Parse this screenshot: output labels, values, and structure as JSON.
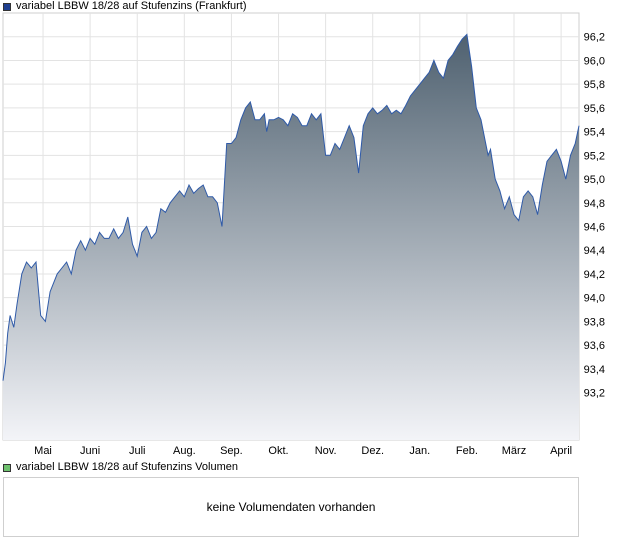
{
  "price_legend": {
    "label": "variabel LBBW 18/28 auf Stufenzins (Frankfurt)",
    "color": "#1f3f8f"
  },
  "volume_legend": {
    "label": "variabel LBBW 18/28 auf Stufenzins Volumen",
    "color": "#6fc26f"
  },
  "volume_panel": {
    "message": "keine Volumendaten vorhanden"
  },
  "colors": {
    "line": "#2f5aa8",
    "fill_top": "#4f6170",
    "fill_bottom": "#f3f4f8",
    "grid": "#e3e3e3"
  },
  "chart_data": {
    "type": "area",
    "title": "variabel LBBW 18/28 auf Stufenzins (Frankfurt)",
    "xlabel": "",
    "ylabel": "",
    "ylim": [
      92.8,
      96.4
    ],
    "yticks": [
      "93,2",
      "93,4",
      "93,6",
      "93,8",
      "94,0",
      "94,2",
      "94,4",
      "94,6",
      "94,8",
      "95,0",
      "95,2",
      "95,4",
      "95,6",
      "95,8",
      "96,0",
      "96,2"
    ],
    "ytick_values": [
      93.2,
      93.4,
      93.6,
      93.8,
      94.0,
      94.2,
      94.4,
      94.6,
      94.8,
      95.0,
      95.2,
      95.4,
      95.6,
      95.8,
      96.0,
      96.2
    ],
    "xticks": [
      "Mai",
      "Juni",
      "Juli",
      "Aug.",
      "Sep.",
      "Okt.",
      "Nov.",
      "Dez.",
      "Jan.",
      "Feb.",
      "März",
      "April"
    ],
    "xtick_positions": [
      0.0,
      1.0,
      2.0,
      3.0,
      4.0,
      5.0,
      6.0,
      7.0,
      8.0,
      9.0,
      10.0,
      11.0
    ],
    "xrange": [
      -0.85,
      11.38
    ],
    "grid": true,
    "series": [
      {
        "name": "variabel LBBW 18/28 auf Stufenzins (Frankfurt)",
        "x": [
          -0.85,
          -0.8,
          -0.75,
          -0.7,
          -0.62,
          -0.55,
          -0.45,
          -0.35,
          -0.25,
          -0.15,
          -0.05,
          0.05,
          0.15,
          0.3,
          0.4,
          0.5,
          0.6,
          0.7,
          0.8,
          0.9,
          1.0,
          1.1,
          1.2,
          1.3,
          1.4,
          1.5,
          1.6,
          1.7,
          1.8,
          1.9,
          2.0,
          2.1,
          2.2,
          2.3,
          2.4,
          2.5,
          2.6,
          2.7,
          2.8,
          2.9,
          3.0,
          3.1,
          3.2,
          3.3,
          3.4,
          3.5,
          3.6,
          3.7,
          3.8,
          3.9,
          4.0,
          4.1,
          4.2,
          4.3,
          4.4,
          4.5,
          4.6,
          4.7,
          4.75,
          4.8,
          4.9,
          5.0,
          5.1,
          5.2,
          5.3,
          5.4,
          5.5,
          5.6,
          5.7,
          5.8,
          5.9,
          6.0,
          6.1,
          6.2,
          6.3,
          6.4,
          6.5,
          6.6,
          6.7,
          6.8,
          6.9,
          7.0,
          7.1,
          7.2,
          7.3,
          7.4,
          7.5,
          7.6,
          7.7,
          7.8,
          7.9,
          8.0,
          8.1,
          8.2,
          8.3,
          8.4,
          8.5,
          8.6,
          8.7,
          8.8,
          8.9,
          9.0,
          9.1,
          9.2,
          9.3,
          9.4,
          9.45,
          9.5,
          9.6,
          9.7,
          9.8,
          9.9,
          10.0,
          10.1,
          10.2,
          10.3,
          10.4,
          10.5,
          10.6,
          10.7,
          10.8,
          10.9,
          11.0,
          11.1,
          11.2,
          11.3,
          11.38
        ],
        "values": [
          93.3,
          93.45,
          93.7,
          93.85,
          93.75,
          93.95,
          94.2,
          94.3,
          94.25,
          94.3,
          93.85,
          93.8,
          94.05,
          94.2,
          94.25,
          94.3,
          94.2,
          94.4,
          94.48,
          94.4,
          94.5,
          94.45,
          94.55,
          94.5,
          94.5,
          94.58,
          94.5,
          94.55,
          94.68,
          94.45,
          94.35,
          94.55,
          94.6,
          94.5,
          94.55,
          94.75,
          94.72,
          94.8,
          94.85,
          94.9,
          94.85,
          94.95,
          94.88,
          94.92,
          94.95,
          94.85,
          94.85,
          94.8,
          94.6,
          95.3,
          95.3,
          95.35,
          95.5,
          95.6,
          95.65,
          95.5,
          95.5,
          95.55,
          95.4,
          95.5,
          95.5,
          95.52,
          95.5,
          95.45,
          95.55,
          95.52,
          95.45,
          95.45,
          95.55,
          95.5,
          95.55,
          95.2,
          95.2,
          95.3,
          95.25,
          95.35,
          95.45,
          95.35,
          95.05,
          95.45,
          95.55,
          95.6,
          95.55,
          95.58,
          95.62,
          95.55,
          95.58,
          95.55,
          95.62,
          95.7,
          95.75,
          95.8,
          95.85,
          95.9,
          96.0,
          95.9,
          95.85,
          96.0,
          96.05,
          96.12,
          96.18,
          96.22,
          95.95,
          95.6,
          95.5,
          95.3,
          95.2,
          95.25,
          95.0,
          94.9,
          94.75,
          94.85,
          94.7,
          94.65,
          94.85,
          94.9,
          94.85,
          94.7,
          94.95,
          95.15,
          95.2,
          95.25,
          95.15,
          95.0,
          95.2,
          95.3,
          95.45
        ]
      }
    ]
  }
}
